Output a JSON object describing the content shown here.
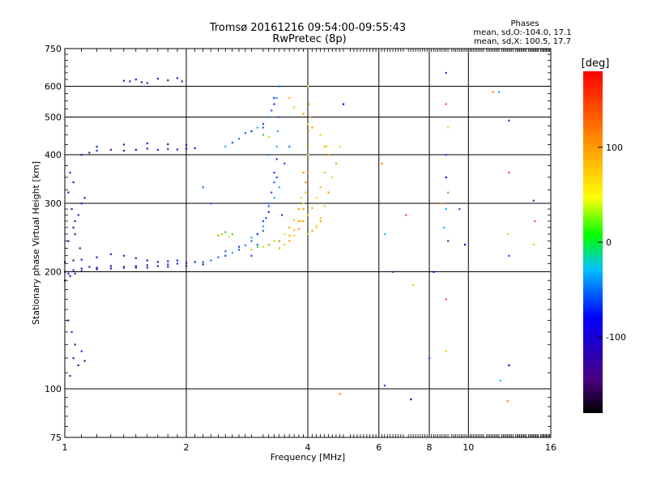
{
  "header": {
    "title": "Tromsø 20161216 09:54:00-09:55:43",
    "subtitle": "RwPretec (8p)",
    "phases": {
      "heading": "Phases",
      "line_o": "mean, sd,O:-104.0, 17.1",
      "line_x": "mean, sd,X: 100.5, 17.7"
    }
  },
  "chart_data": {
    "type": "scatter",
    "xlabel": "Frequency [MHz]",
    "ylabel": "Stationary phase Virtual Height [km]",
    "x_scale": "log",
    "y_scale": "log",
    "xlim": [
      1,
      16
    ],
    "ylim": [
      75,
      750
    ],
    "x_ticks": [
      1,
      2,
      4,
      6,
      8,
      10,
      16
    ],
    "x_tick_labels": [
      "1",
      "2",
      "4",
      "6",
      "8",
      "10",
      "16"
    ],
    "y_ticks": [
      75,
      100,
      200,
      300,
      400,
      500,
      600,
      750
    ],
    "y_tick_labels": [
      "75",
      "100",
      "200",
      "300",
      "400",
      "500",
      "600",
      "750"
    ],
    "grid": true,
    "colorbar": {
      "label": "[deg]",
      "range": [
        -180,
        180
      ],
      "ticks": [
        100,
        0,
        -100
      ],
      "tick_labels": [
        "100",
        "0",
        "-100"
      ]
    },
    "series": [
      {
        "points": [
          [
            1.0,
            200
          ],
          [
            1.02,
            198
          ],
          [
            1.05,
            202
          ],
          [
            1.1,
            204
          ],
          [
            1.15,
            206
          ],
          [
            1.2,
            205
          ],
          [
            1.3,
            207
          ],
          [
            1.4,
            206
          ],
          [
            1.5,
            207
          ],
          [
            1.6,
            208
          ],
          [
            1.7,
            207
          ],
          [
            1.8,
            209
          ],
          [
            1.9,
            210
          ],
          [
            2.0,
            211
          ],
          [
            2.1,
            212
          ],
          [
            1.0,
            190
          ],
          [
            1.03,
            195
          ],
          [
            1.06,
            198
          ],
          [
            1.1,
            201
          ],
          [
            1.2,
            203
          ],
          [
            1.3,
            204
          ],
          [
            1.4,
            205
          ],
          [
            1.5,
            205
          ],
          [
            1.6,
            205
          ],
          [
            1.8,
            206
          ],
          [
            2.0,
            207
          ],
          [
            2.2,
            209
          ],
          [
            1.0,
            212
          ],
          [
            1.05,
            214
          ],
          [
            1.1,
            215
          ],
          [
            1.2,
            218
          ],
          [
            1.3,
            222
          ],
          [
            1.4,
            220
          ],
          [
            1.5,
            217
          ],
          [
            1.6,
            214
          ],
          [
            1.7,
            212
          ],
          [
            1.8,
            213
          ],
          [
            1.9,
            214
          ],
          [
            1.02,
            240
          ],
          [
            1.05,
            260
          ],
          [
            1.08,
            280
          ],
          [
            1.1,
            300
          ],
          [
            1.12,
            310
          ],
          [
            1.04,
            290
          ],
          [
            1.06,
            270
          ],
          [
            1.02,
            320
          ],
          [
            1.05,
            340
          ],
          [
            1.03,
            360
          ],
          [
            1.06,
            250
          ],
          [
            1.09,
            230
          ],
          [
            1.1,
            400
          ],
          [
            1.15,
            405
          ],
          [
            1.2,
            410
          ],
          [
            1.3,
            412
          ],
          [
            1.4,
            410
          ],
          [
            1.5,
            412
          ],
          [
            1.6,
            415
          ],
          [
            1.7,
            412
          ],
          [
            1.8,
            414
          ],
          [
            1.9,
            413
          ],
          [
            2.0,
            415
          ],
          [
            2.1,
            416
          ],
          [
            1.2,
            420
          ],
          [
            1.4,
            425
          ],
          [
            1.6,
            428
          ],
          [
            1.8,
            426
          ],
          [
            2.0,
            424
          ],
          [
            1.4,
            620
          ],
          [
            1.45,
            618
          ],
          [
            1.5,
            625
          ],
          [
            1.55,
            615
          ],
          [
            1.6,
            612
          ],
          [
            1.7,
            628
          ],
          [
            1.8,
            622
          ],
          [
            1.9,
            630
          ],
          [
            1.95,
            618
          ],
          [
            1.02,
            150
          ],
          [
            1.04,
            140
          ],
          [
            1.06,
            130
          ],
          [
            1.05,
            120
          ],
          [
            1.08,
            115
          ],
          [
            1.03,
            108
          ],
          [
            1.1,
            125
          ],
          [
            1.12,
            118
          ]
        ]
      },
      {
        "points": [
          [
            2.2,
            212
          ],
          [
            2.3,
            214
          ],
          [
            2.4,
            218
          ],
          [
            2.5,
            220
          ],
          [
            2.6,
            224
          ],
          [
            2.7,
            228
          ],
          [
            2.8,
            234
          ],
          [
            2.9,
            240
          ],
          [
            3.0,
            250
          ],
          [
            3.1,
            262
          ],
          [
            3.15,
            275
          ],
          [
            3.2,
            295
          ],
          [
            3.25,
            320
          ],
          [
            3.3,
            360
          ],
          [
            3.35,
            420
          ],
          [
            3.38,
            500
          ],
          [
            3.4,
            600
          ],
          [
            2.5,
            226
          ],
          [
            2.7,
            232
          ],
          [
            2.9,
            245
          ],
          [
            3.1,
            270
          ],
          [
            3.2,
            300
          ],
          [
            3.3,
            340
          ],
          [
            3.35,
            390
          ],
          [
            3.37,
            460
          ],
          [
            2.9,
            220
          ],
          [
            3.0,
            235
          ],
          [
            3.1,
            255
          ],
          [
            3.2,
            285
          ],
          [
            3.3,
            310
          ],
          [
            3.35,
            350
          ],
          [
            3.2,
            400
          ],
          [
            3.1,
            470
          ],
          [
            3.3,
            560
          ],
          [
            2.5,
            420
          ],
          [
            2.6,
            430
          ],
          [
            2.7,
            440
          ],
          [
            2.8,
            455
          ],
          [
            2.9,
            460
          ],
          [
            3.0,
            470
          ],
          [
            3.1,
            480
          ],
          [
            3.2,
            500
          ],
          [
            3.25,
            520
          ],
          [
            3.3,
            540
          ],
          [
            3.35,
            560
          ],
          [
            2.3,
            300
          ],
          [
            2.2,
            330
          ],
          [
            3.4,
            240
          ],
          [
            3.45,
            280
          ],
          [
            3.4,
            330
          ],
          [
            3.5,
            380
          ],
          [
            3.6,
            420
          ]
        ]
      },
      {
        "points": [
          [
            2.4,
            248
          ],
          [
            2.45,
            250
          ],
          [
            2.5,
            253
          ],
          [
            2.55,
            246
          ],
          [
            2.6,
            250
          ],
          [
            2.9,
            228
          ],
          [
            3.0,
            232
          ],
          [
            3.1,
            232
          ],
          [
            3.2,
            235
          ],
          [
            3.3,
            240
          ],
          [
            3.1,
            450
          ],
          [
            3.2,
            445
          ]
        ]
      },
      {
        "points": [
          [
            3.4,
            230
          ],
          [
            3.5,
            235
          ],
          [
            3.6,
            240
          ],
          [
            3.7,
            248
          ],
          [
            3.8,
            258
          ],
          [
            3.85,
            270
          ],
          [
            3.9,
            290
          ],
          [
            3.95,
            320
          ],
          [
            4.0,
            360
          ],
          [
            4.02,
            420
          ],
          [
            4.05,
            500
          ],
          [
            4.0,
            600
          ],
          [
            3.6,
            248
          ],
          [
            3.7,
            256
          ],
          [
            3.8,
            270
          ],
          [
            3.9,
            300
          ],
          [
            3.95,
            340
          ],
          [
            4.0,
            400
          ],
          [
            4.02,
            460
          ],
          [
            4.03,
            540
          ],
          [
            3.9,
            270
          ],
          [
            4.0,
            280
          ],
          [
            4.1,
            292
          ],
          [
            4.2,
            310
          ],
          [
            4.3,
            330
          ],
          [
            4.4,
            360
          ],
          [
            4.5,
            400
          ],
          [
            4.45,
            420
          ],
          [
            3.4,
            240
          ],
          [
            3.5,
            250
          ],
          [
            3.6,
            260
          ],
          [
            3.7,
            272
          ],
          [
            3.8,
            290
          ],
          [
            3.85,
            310
          ],
          [
            3.9,
            360
          ],
          [
            4.2,
            260
          ],
          [
            4.3,
            275
          ],
          [
            4.4,
            295
          ],
          [
            4.5,
            320
          ],
          [
            4.6,
            350
          ],
          [
            4.7,
            380
          ],
          [
            4.8,
            420
          ],
          [
            3.6,
            560
          ],
          [
            3.7,
            530
          ],
          [
            3.9,
            510
          ],
          [
            4.0,
            480
          ],
          [
            4.1,
            470
          ],
          [
            4.3,
            450
          ],
          [
            4.4,
            420
          ],
          [
            4.0,
            250
          ],
          [
            4.1,
            255
          ],
          [
            4.2,
            263
          ],
          [
            4.3,
            270
          ]
        ]
      },
      {
        "points": [
          [
            4.9,
            540
          ],
          [
            6.1,
            380
          ],
          [
            6.2,
            250
          ],
          [
            6.5,
            200
          ],
          [
            7.0,
            280
          ],
          [
            7.3,
            185
          ],
          [
            8.0,
            120
          ],
          [
            8.2,
            200
          ],
          [
            8.6,
            300
          ],
          [
            8.7,
            260
          ],
          [
            8.8,
            650
          ],
          [
            8.8,
            540
          ],
          [
            8.9,
            470
          ],
          [
            8.8,
            400
          ],
          [
            8.8,
            350
          ],
          [
            8.9,
            320
          ],
          [
            8.8,
            290
          ],
          [
            8.9,
            240
          ],
          [
            8.8,
            170
          ],
          [
            8.8,
            125
          ],
          [
            9.5,
            290
          ],
          [
            9.8,
            235
          ],
          [
            11.5,
            580
          ],
          [
            11.9,
            580
          ],
          [
            12.6,
            490
          ],
          [
            12.6,
            360
          ],
          [
            12.5,
            250
          ],
          [
            12.6,
            220
          ],
          [
            12.6,
            115
          ],
          [
            12.5,
            93
          ],
          [
            12.0,
            105
          ],
          [
            14.5,
            305
          ],
          [
            14.6,
            270
          ],
          [
            14.5,
            235
          ],
          [
            6.2,
            102
          ],
          [
            7.2,
            94
          ],
          [
            4.8,
            97
          ]
        ]
      }
    ]
  }
}
